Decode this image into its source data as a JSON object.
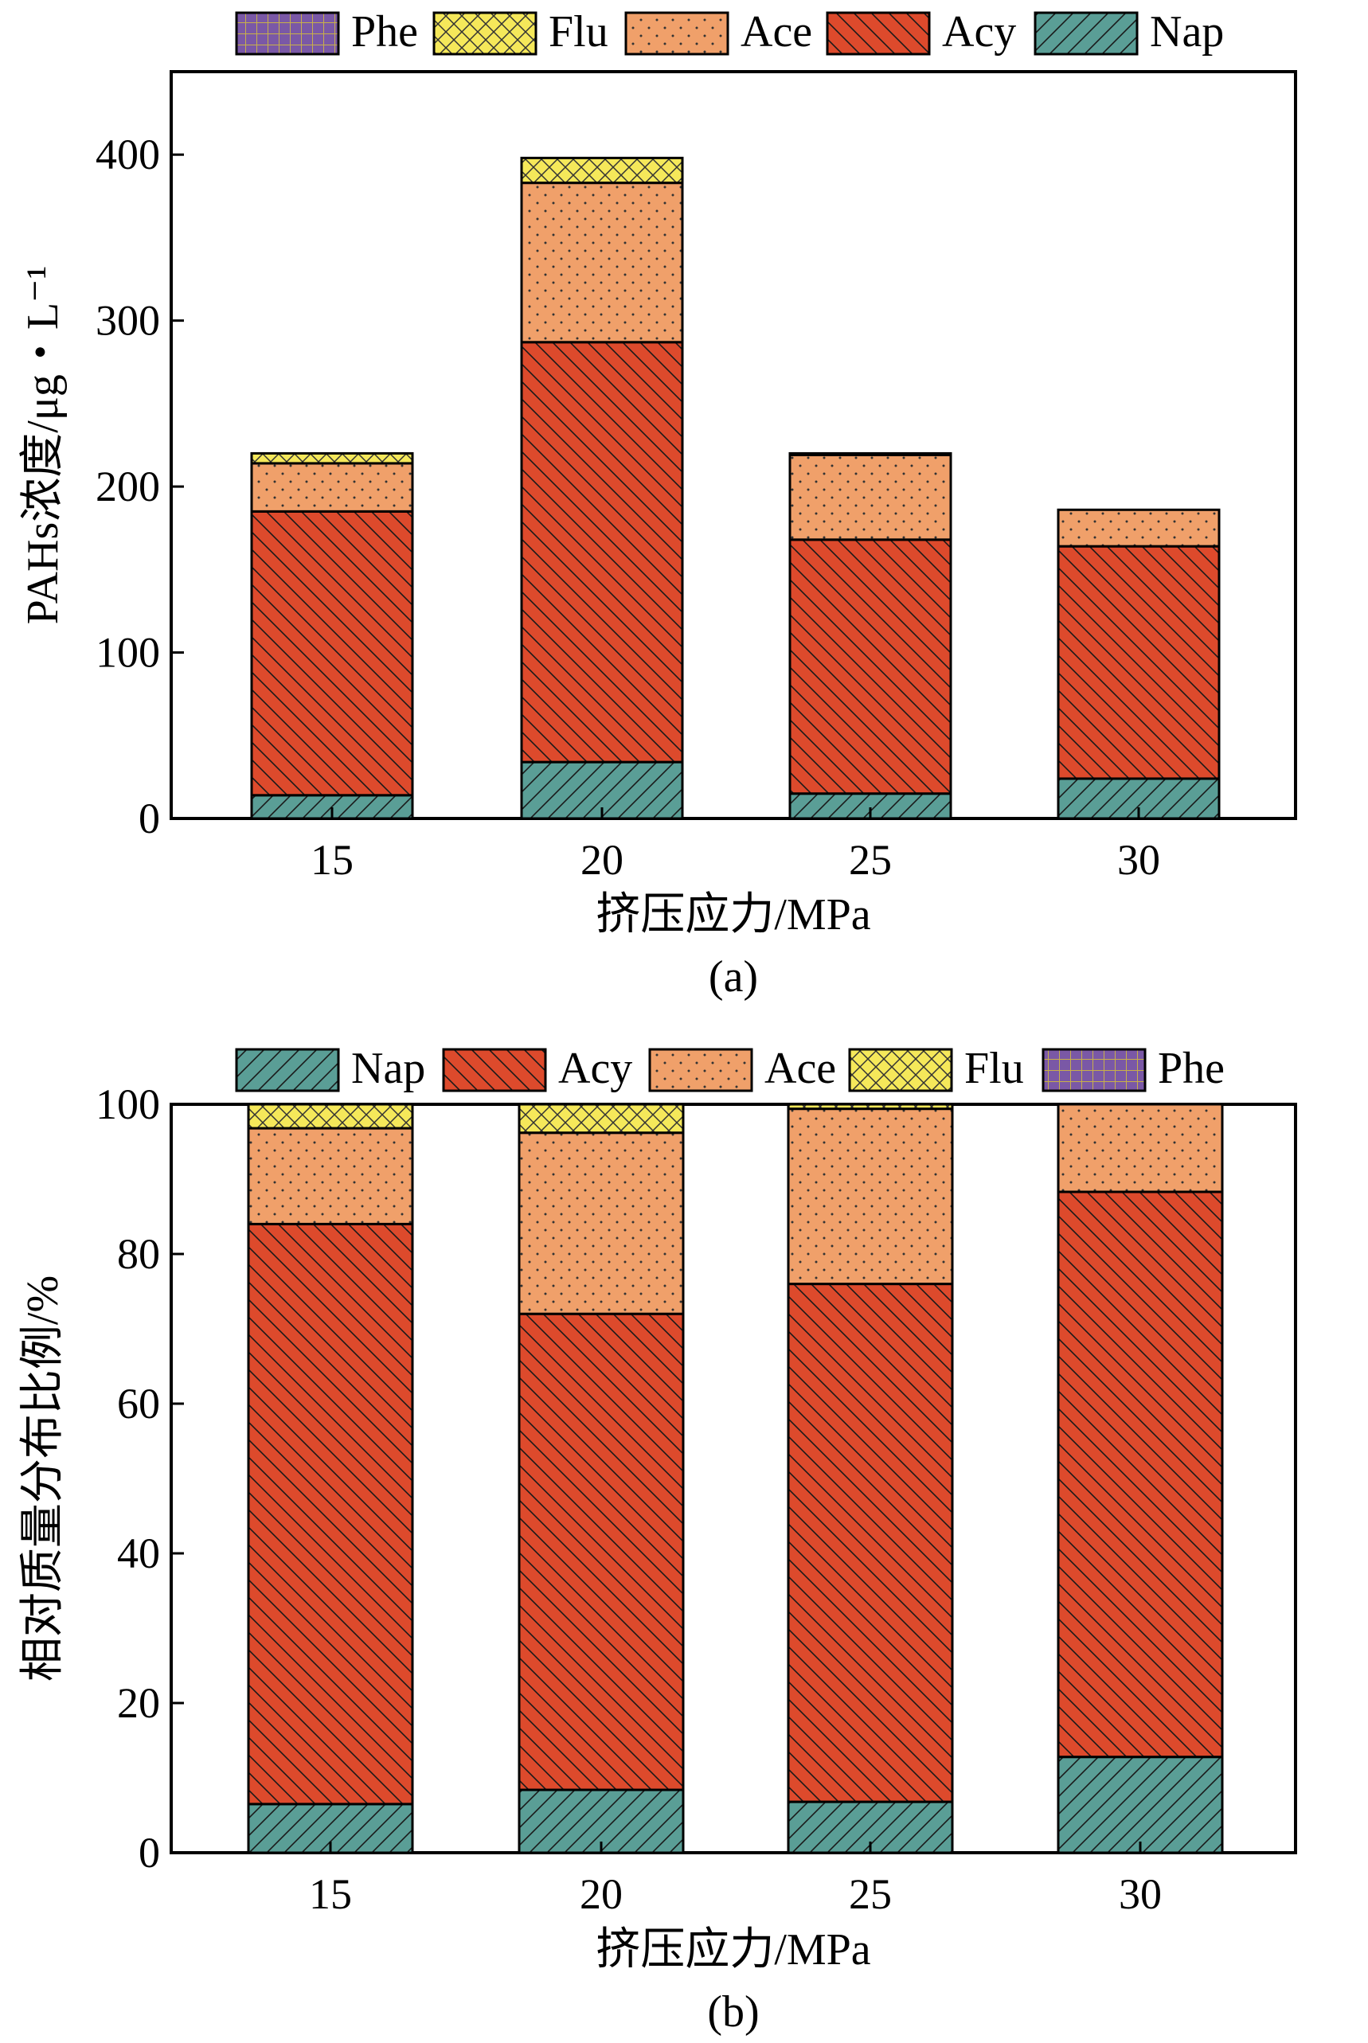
{
  "colors": {
    "Nap": "#5a9e96",
    "Acy": "#dd4a2c",
    "Ace": "#f0a06a",
    "Flu": "#f5e85a",
    "Phe": "#7a58a6"
  },
  "patterns": {
    "Nap": "hatch-forward",
    "Acy": "hatch-back",
    "Ace": "dots",
    "Flu": "crosshatch",
    "Phe": "grid"
  },
  "chart_data": [
    {
      "type": "bar",
      "stacked": true,
      "panel": "(a)",
      "xlabel": "挤压应力/MPa",
      "ylabel": "PAHs浓度/μg・L⁻¹",
      "ylim": [
        0,
        450
      ],
      "yticks": [
        "0",
        "100",
        "200",
        "300",
        "400"
      ],
      "categories": [
        "15",
        "20",
        "25",
        "30"
      ],
      "legend": [
        "Phe",
        "Flu",
        "Ace",
        "Acy",
        "Nap"
      ],
      "legend_placement": "top",
      "series": [
        {
          "name": "Nap",
          "values": [
            14,
            34,
            15,
            24
          ]
        },
        {
          "name": "Acy",
          "values": [
            171,
            253,
            153,
            140
          ]
        },
        {
          "name": "Ace",
          "values": [
            29,
            96,
            51,
            22
          ]
        },
        {
          "name": "Flu",
          "values": [
            6,
            15,
            1,
            0
          ]
        },
        {
          "name": "Phe",
          "values": [
            0,
            0,
            0,
            0
          ]
        }
      ]
    },
    {
      "type": "bar",
      "stacked": true,
      "panel": "(b)",
      "xlabel": "挤压应力/MPa",
      "ylabel": "相对质量分布比例/%",
      "ylim": [
        0,
        100
      ],
      "yticks": [
        "0",
        "20",
        "40",
        "60",
        "80",
        "100"
      ],
      "categories": [
        "15",
        "20",
        "25",
        "30"
      ],
      "legend": [
        "Nap",
        "Acy",
        "Ace",
        "Flu",
        "Phe"
      ],
      "legend_placement": "top",
      "series": [
        {
          "name": "Nap",
          "values": [
            6.5,
            8.4,
            6.8,
            12.8
          ]
        },
        {
          "name": "Acy",
          "values": [
            77.5,
            63.6,
            69.2,
            75.5
          ]
        },
        {
          "name": "Ace",
          "values": [
            12.8,
            24.2,
            23.4,
            11.7
          ]
        },
        {
          "name": "Flu",
          "values": [
            3.2,
            3.8,
            0.6,
            0
          ]
        },
        {
          "name": "Phe",
          "values": [
            0,
            0,
            0,
            0
          ]
        }
      ]
    }
  ]
}
